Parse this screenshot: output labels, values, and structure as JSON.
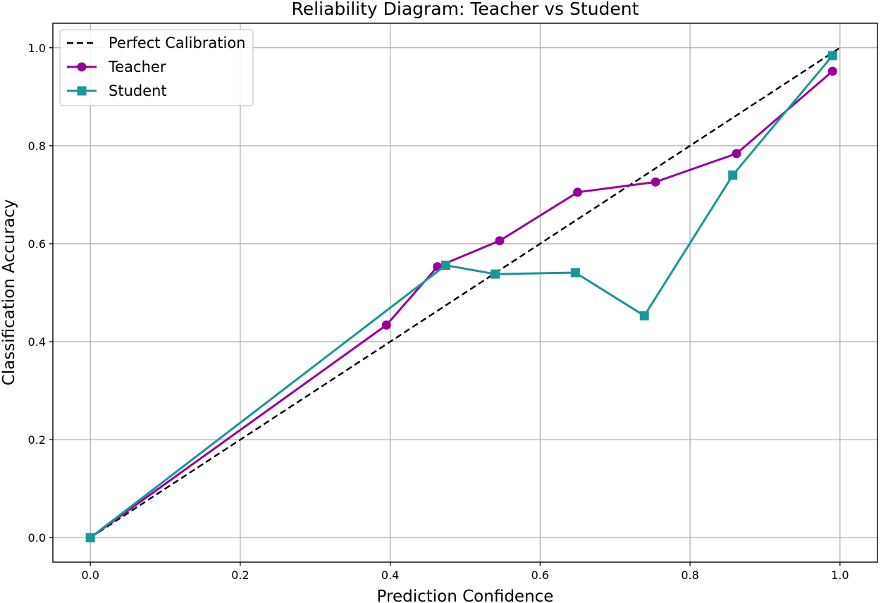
{
  "chart_data": {
    "type": "line",
    "title": "Reliability Diagram: Teacher vs Student",
    "xlabel": "Prediction Confidence",
    "ylabel": "Classification Accuracy",
    "xlim": [
      -0.05,
      1.05
    ],
    "ylim": [
      -0.05,
      1.05
    ],
    "xticks": [
      0.0,
      0.2,
      0.4,
      0.6,
      0.8,
      1.0
    ],
    "yticks": [
      0.0,
      0.2,
      0.4,
      0.6,
      0.8,
      1.0
    ],
    "xtick_labels": [
      "0.0",
      "0.2",
      "0.4",
      "0.6",
      "0.8",
      "1.0"
    ],
    "ytick_labels": [
      "0.0",
      "0.2",
      "0.4",
      "0.6",
      "0.8",
      "1.0"
    ],
    "grid": true,
    "legend_position": "upper left",
    "series": [
      {
        "name": "Perfect Calibration",
        "style": "dashed",
        "marker": "none",
        "color": "#000000",
        "x": [
          0.0,
          1.0
        ],
        "y": [
          0.0,
          1.0
        ]
      },
      {
        "name": "Teacher",
        "style": "solid",
        "marker": "circle",
        "color": "#990099",
        "x": [
          0.0,
          0.395,
          0.463,
          0.546,
          0.65,
          0.754,
          0.862,
          0.99
        ],
        "y": [
          0.0,
          0.434,
          0.553,
          0.606,
          0.705,
          0.726,
          0.784,
          0.952
        ]
      },
      {
        "name": "Student",
        "style": "solid",
        "marker": "square",
        "color": "#1a9696",
        "x": [
          0.0,
          0.474,
          0.54,
          0.647,
          0.739,
          0.857,
          0.99
        ],
        "y": [
          0.0,
          0.556,
          0.538,
          0.541,
          0.453,
          0.74,
          0.984
        ]
      }
    ]
  }
}
